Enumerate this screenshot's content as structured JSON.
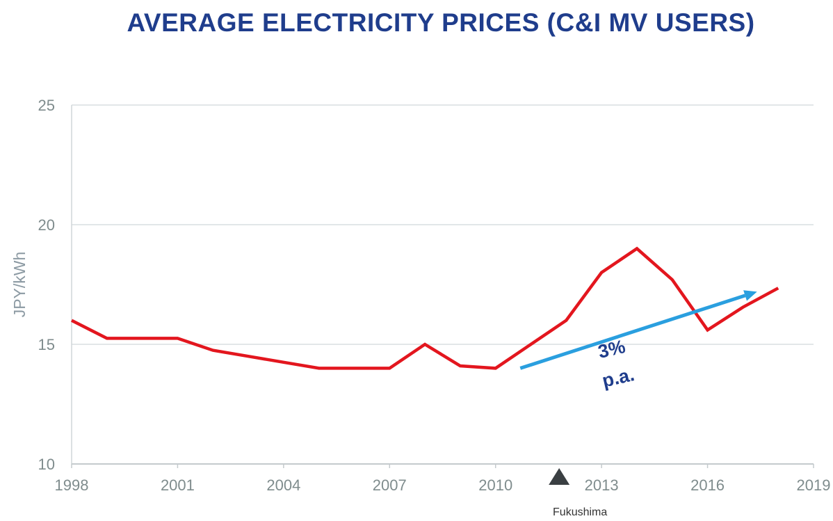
{
  "chart_data": {
    "type": "line",
    "title": "AVERAGE ELECTRICITY PRICES (C&I MV USERS)",
    "ylabel": "JPY/kWh",
    "xlabel": "",
    "xlim": [
      1998,
      2019
    ],
    "ylim": [
      10,
      25
    ],
    "x_ticks": [
      1998,
      2001,
      2004,
      2007,
      2010,
      2013,
      2016,
      2019
    ],
    "y_ticks": [
      10,
      15,
      20,
      25
    ],
    "grid": "horizontal",
    "series": [
      {
        "color": "#e3161e",
        "x": [
          1998,
          1999,
          2000,
          2001,
          2002,
          2003,
          2004,
          2005,
          2006,
          2007,
          2008,
          2009,
          2010,
          2011,
          2012,
          2013,
          2014,
          2015,
          2016,
          2017,
          2018
        ],
        "y": [
          16.0,
          15.25,
          15.25,
          15.25,
          14.75,
          14.5,
          14.25,
          14.0,
          14.0,
          14.0,
          15.0,
          14.1,
          14.0,
          15.0,
          16.0,
          18.0,
          19.0,
          17.7,
          15.6,
          16.55,
          17.35
        ]
      }
    ],
    "annotations": {
      "trend_arrow": {
        "color": "#2a9fdf",
        "x_start": 2010.7,
        "y_start": 14.0,
        "x_end": 2017.4,
        "y_end": 17.2
      },
      "growth_line1": "3%",
      "growth_line2": "p.a.",
      "event": {
        "label": "Fukushima",
        "x": 2011.8,
        "marker_color": "#3a3f42"
      }
    }
  }
}
